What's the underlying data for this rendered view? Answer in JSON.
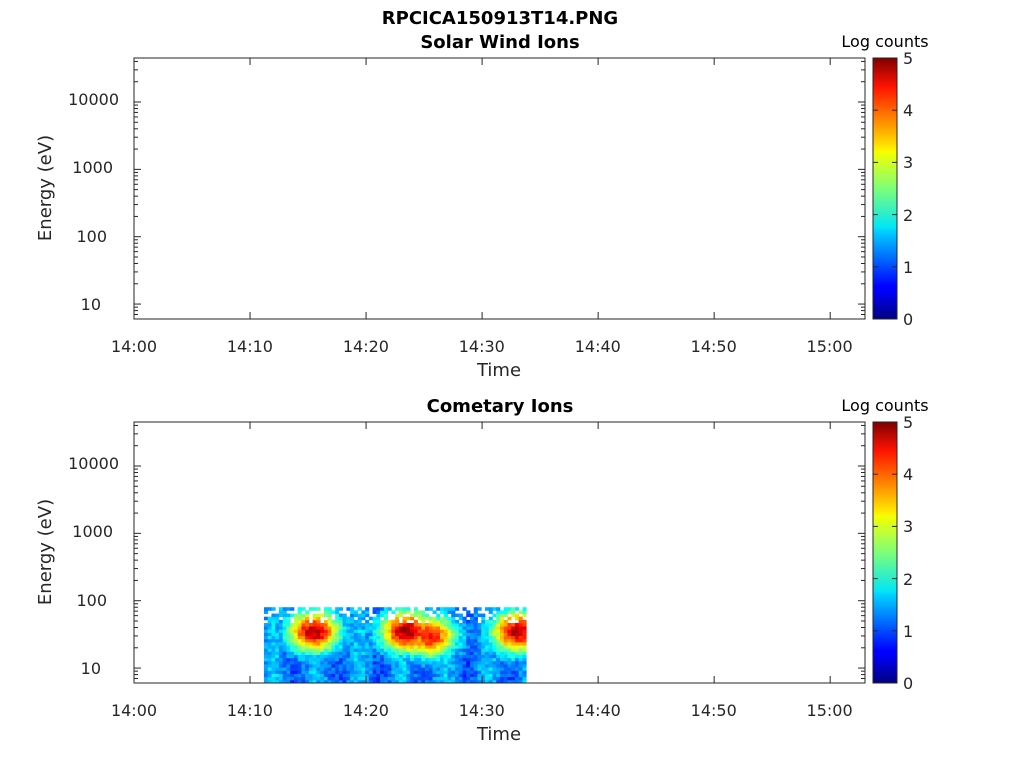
{
  "figure_title": "RPCICA150913T14.PNG",
  "chart_data": [
    {
      "type": "heatmap",
      "title": "Solar Wind Ions",
      "xlabel": "Time",
      "ylabel": "Energy (eV)",
      "xlim": [
        "14:00",
        "15:03"
      ],
      "x_ticks": [
        "14:00",
        "14:10",
        "14:20",
        "14:30",
        "14:40",
        "14:50",
        "15:00"
      ],
      "yscale": "log",
      "ylim": [
        6,
        45000
      ],
      "y_ticks": [
        "10",
        "100",
        "1000",
        "10000"
      ],
      "colorbar": {
        "label": "Log counts",
        "min": 0,
        "max": 5,
        "ticks": [
          "0",
          "1",
          "2",
          "3",
          "4",
          "5"
        ]
      },
      "data": []
    },
    {
      "type": "heatmap",
      "title": "Cometary Ions",
      "xlabel": "Time",
      "ylabel": "Energy (eV)",
      "xlim": [
        "14:00",
        "15:03"
      ],
      "x_ticks": [
        "14:00",
        "14:10",
        "14:20",
        "14:30",
        "14:40",
        "14:50",
        "15:00"
      ],
      "yscale": "log",
      "ylim": [
        6,
        45000
      ],
      "y_ticks": [
        "10",
        "100",
        "1000",
        "10000"
      ],
      "colorbar": {
        "label": "Log counts",
        "min": 0,
        "max": 5,
        "ticks": [
          "0",
          "1",
          "2",
          "3",
          "4",
          "5"
        ]
      },
      "data_extent": {
        "time_start": "14:11.2",
        "time_end": "14:33.8",
        "energy_min": 6,
        "energy_max": 80
      },
      "peak_bands": [
        {
          "time": "14:15.5",
          "energy": 35,
          "log_counts": 3.8
        },
        {
          "time": "14:23.5",
          "energy": 35,
          "log_counts": 4.0
        },
        {
          "time": "14:25.5",
          "energy": 30,
          "log_counts": 3.5
        },
        {
          "time": "14:33.0",
          "energy": 35,
          "log_counts": 3.8
        }
      ]
    }
  ]
}
